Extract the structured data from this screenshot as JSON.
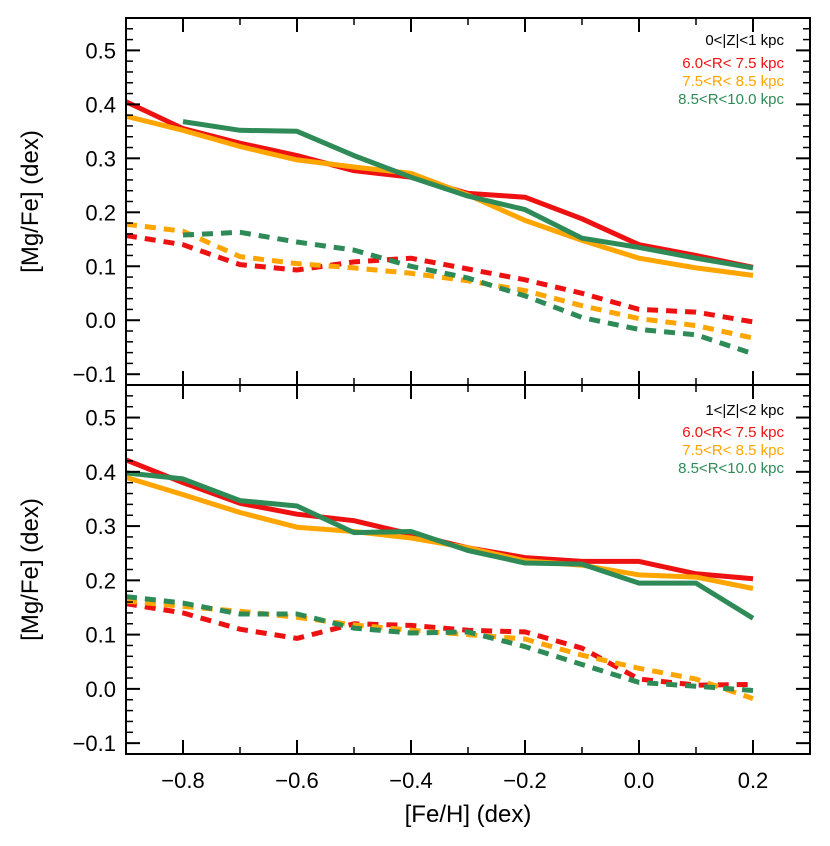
{
  "chart_data": [
    {
      "type": "line",
      "panel": "top",
      "ylabel": "[Mg/Fe] (dex)",
      "xlabel": "",
      "xlim": [
        -0.9,
        0.3
      ],
      "ylim": [
        -0.12,
        0.56
      ],
      "xticks": [
        -0.8,
        -0.6,
        -0.4,
        -0.2,
        0.0,
        0.2
      ],
      "yticks": [
        -0.1,
        0.0,
        0.1,
        0.2,
        0.3,
        0.4,
        0.5
      ],
      "ytick_labels": [
        "−0.1",
        "0.0",
        "0.1",
        "0.2",
        "0.3",
        "0.4",
        "0.5"
      ],
      "legend_title": "0<|Z|<1 kpc",
      "legend_position": "top-right",
      "series": [
        {
          "name": "6.0<R< 7.5 kpc",
          "color": "#ee1111",
          "style": "solid",
          "x": [
            -0.9,
            -0.8,
            -0.7,
            -0.6,
            -0.5,
            -0.4,
            -0.3,
            -0.2,
            -0.1,
            0.0,
            0.1,
            0.2
          ],
          "y": [
            0.405,
            0.355,
            0.328,
            0.305,
            0.277,
            0.265,
            0.235,
            0.228,
            0.188,
            0.14,
            0.12,
            0.098
          ]
        },
        {
          "name": "6.0<R< 7.5 kpc",
          "color": "#ee1111",
          "style": "dashed",
          "x": [
            -0.9,
            -0.8,
            -0.7,
            -0.6,
            -0.5,
            -0.4,
            -0.3,
            -0.2,
            -0.1,
            0.0,
            0.1,
            0.2
          ],
          "y": [
            0.157,
            0.14,
            0.103,
            0.093,
            0.108,
            0.115,
            0.095,
            0.075,
            0.05,
            0.02,
            0.015,
            -0.003
          ]
        },
        {
          "name": "7.5<R< 8.5 kpc",
          "color": "#ffa500",
          "style": "solid",
          "x": [
            -0.9,
            -0.8,
            -0.7,
            -0.6,
            -0.5,
            -0.4,
            -0.3,
            -0.2,
            -0.1,
            0.0,
            0.1,
            0.2
          ],
          "y": [
            0.378,
            0.352,
            0.322,
            0.297,
            0.284,
            0.272,
            0.232,
            0.185,
            0.148,
            0.115,
            0.097,
            0.083
          ]
        },
        {
          "name": "7.5<R< 8.5 kpc",
          "color": "#ffa500",
          "style": "dashed",
          "x": [
            -0.9,
            -0.8,
            -0.7,
            -0.6,
            -0.5,
            -0.4,
            -0.3,
            -0.2,
            -0.1,
            0.0,
            0.1,
            0.2
          ],
          "y": [
            0.178,
            0.165,
            0.118,
            0.105,
            0.097,
            0.087,
            0.073,
            0.055,
            0.027,
            0.003,
            -0.01,
            -0.033
          ]
        },
        {
          "name": "8.5<R<10.0 kpc",
          "color": "#2e8b57",
          "style": "solid",
          "x": [
            -0.8,
            -0.7,
            -0.6,
            -0.5,
            -0.4,
            -0.3,
            -0.2,
            -0.1,
            0.0,
            0.1,
            0.2
          ],
          "y": [
            0.368,
            0.352,
            0.35,
            0.305,
            0.265,
            0.23,
            0.205,
            0.152,
            0.135,
            0.115,
            0.097
          ]
        },
        {
          "name": "8.5<R<10.0 kpc",
          "color": "#2e8b57",
          "style": "dashed",
          "x": [
            -0.8,
            -0.7,
            -0.6,
            -0.5,
            -0.4,
            -0.3,
            -0.2,
            -0.1,
            0.0,
            0.1,
            0.2
          ],
          "y": [
            0.158,
            0.163,
            0.145,
            0.13,
            0.1,
            0.078,
            0.045,
            0.005,
            -0.017,
            -0.027,
            -0.062
          ]
        }
      ]
    },
    {
      "type": "line",
      "panel": "bottom",
      "ylabel": "[Mg/Fe] (dex)",
      "xlabel": "[Fe/H] (dex)",
      "xlim": [
        -0.9,
        0.3
      ],
      "ylim": [
        -0.12,
        0.56
      ],
      "xticks": [
        -0.8,
        -0.6,
        -0.4,
        -0.2,
        0.0,
        0.2
      ],
      "xtick_labels": [
        "−0.8",
        "−0.6",
        "−0.4",
        "−0.2",
        "0.0",
        "0.2"
      ],
      "yticks": [
        -0.1,
        0.0,
        0.1,
        0.2,
        0.3,
        0.4,
        0.5
      ],
      "ytick_labels": [
        "−0.1",
        "0.0",
        "0.1",
        "0.2",
        "0.3",
        "0.4",
        "0.5"
      ],
      "legend_title": "1<|Z|<2 kpc",
      "legend_position": "top-right",
      "series": [
        {
          "name": "6.0<R< 7.5 kpc",
          "color": "#ee1111",
          "style": "solid",
          "x": [
            -0.9,
            -0.8,
            -0.7,
            -0.6,
            -0.5,
            -0.4,
            -0.3,
            -0.2,
            -0.1,
            0.0,
            0.1,
            0.2
          ],
          "y": [
            0.422,
            0.38,
            0.342,
            0.322,
            0.31,
            0.285,
            0.26,
            0.242,
            0.235,
            0.235,
            0.212,
            0.203
          ]
        },
        {
          "name": "6.0<R< 7.5 kpc",
          "color": "#ee1111",
          "style": "dashed",
          "x": [
            -0.9,
            -0.8,
            -0.7,
            -0.6,
            -0.5,
            -0.4,
            -0.3,
            -0.2,
            -0.1,
            0.0,
            0.1,
            0.2
          ],
          "y": [
            0.157,
            0.14,
            0.11,
            0.093,
            0.12,
            0.117,
            0.108,
            0.105,
            0.075,
            0.018,
            0.007,
            0.008
          ]
        },
        {
          "name": "7.5<R< 8.5 kpc",
          "color": "#ffa500",
          "style": "solid",
          "x": [
            -0.9,
            -0.8,
            -0.7,
            -0.6,
            -0.5,
            -0.4,
            -0.3,
            -0.2,
            -0.1,
            0.0,
            0.1,
            0.2
          ],
          "y": [
            0.39,
            0.358,
            0.325,
            0.298,
            0.29,
            0.278,
            0.26,
            0.236,
            0.228,
            0.21,
            0.206,
            0.185
          ]
        },
        {
          "name": "7.5<R< 8.5 kpc",
          "color": "#ffa500",
          "style": "dashed",
          "x": [
            -0.9,
            -0.8,
            -0.7,
            -0.6,
            -0.5,
            -0.4,
            -0.3,
            -0.2,
            -0.1,
            0.0,
            0.1,
            0.2
          ],
          "y": [
            0.162,
            0.152,
            0.143,
            0.132,
            0.118,
            0.108,
            0.1,
            0.092,
            0.062,
            0.038,
            0.018,
            -0.018
          ]
        },
        {
          "name": "8.5<R<10.0 kpc",
          "color": "#2e8b57",
          "style": "solid",
          "x": [
            -0.9,
            -0.8,
            -0.7,
            -0.6,
            -0.5,
            -0.4,
            -0.3,
            -0.2,
            -0.1,
            0.0,
            0.1,
            0.2
          ],
          "y": [
            0.398,
            0.387,
            0.347,
            0.337,
            0.288,
            0.29,
            0.255,
            0.232,
            0.23,
            0.195,
            0.195,
            0.13
          ]
        },
        {
          "name": "8.5<R<10.0 kpc",
          "color": "#2e8b57",
          "style": "dashed",
          "x": [
            -0.9,
            -0.8,
            -0.7,
            -0.6,
            -0.5,
            -0.4,
            -0.3,
            -0.2,
            -0.1,
            0.0,
            0.1,
            0.2
          ],
          "y": [
            0.17,
            0.158,
            0.138,
            0.138,
            0.112,
            0.103,
            0.105,
            0.078,
            0.045,
            0.012,
            0.005,
            -0.003
          ]
        }
      ]
    }
  ]
}
